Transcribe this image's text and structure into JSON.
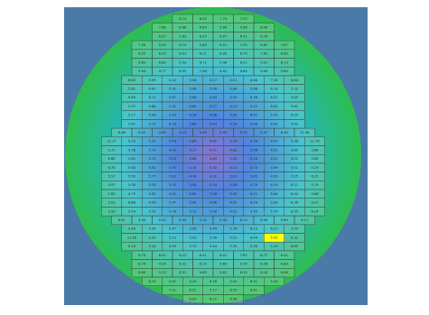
{
  "colors": {
    "panel_background": "#4a7aa8",
    "page_background": "#ffffff",
    "grid_line": "#3a4a3a",
    "highlight": "#ffff00",
    "wafer_edge_green": "#2ebd4e",
    "wafer_mid_cyan": "#22b5c5",
    "wafer_center_blue": "#2a6ad8",
    "wafer_center_violet": "#6f55c8"
  },
  "wafer_map": {
    "highlighted_cell": {
      "row": 25,
      "col": 7
    },
    "rows": [
      [
        "8.14",
        "8.52",
        "7.74",
        "7.55"
      ],
      [
        "7.88",
        "6.68",
        "6.89",
        "5.99",
        "5.86",
        "6.08"
      ],
      [
        "6.57",
        "5.63",
        "6.25",
        "6.07",
        "6.41",
        "6.76"
      ],
      [
        "7.09",
        "5.55",
        "6.19",
        "5.88",
        "6.01",
        "7.55",
        "6.65",
        "7.87"
      ],
      [
        "6.55",
        "6.35",
        "6.01",
        "6.21",
        "6.09",
        "6.70",
        "7.63",
        "6.69"
      ],
      [
        "6.62",
        "6.80",
        "5.53",
        "6.71",
        "5.48",
        "6.01",
        "5.01",
        "6.19"
      ],
      [
        "5.94",
        "4.77",
        "6.35",
        "7.96",
        "4.92",
        "4.85",
        "5.69",
        "5.64"
      ],
      [
        "6.63",
        "5.99",
        "5.52",
        "5.56",
        "5.27",
        "4.01",
        "6.66",
        "7.26",
        "6.84"
      ],
      [
        "5.81",
        "4.63",
        "5.91",
        "5.08",
        "5.06",
        "4.64",
        "5.68",
        "6.18",
        "5.32"
      ],
      [
        "6.69",
        "6.11",
        "5.87",
        "5.86",
        "5.63",
        "4.55",
        "6.38",
        "6.27",
        "5.45"
      ],
      [
        "5.37",
        "5.84",
        "5.32",
        "4.84",
        "4.27",
        "4.21",
        "5.12",
        "6.04",
        "5.81"
      ],
      [
        "5.17",
        "5.08",
        "5.33",
        "6.28",
        "4.66",
        "5.62",
        "6.01",
        "5.26",
        "6.20"
      ],
      [
        "5.67",
        "5.71",
        "6.35",
        "5.80",
        "5.43",
        "4.24",
        "5.06",
        "4.90",
        "5.63"
      ],
      [
        "6.46",
        "6.02",
        "4.65",
        "4.13",
        "5.45",
        "5.53",
        "5.71",
        "4.47",
        "6.49",
        "12.46"
      ],
      [
        "12.17",
        "5.33",
        "5.29",
        "5.43",
        "4.89",
        "4.61",
        "5.76",
        "4.78",
        "4.47",
        "5.38",
        "11.74"
      ],
      [
        "5.72",
        "5.78",
        "5.73",
        "4.90",
        "5.17",
        "4.71",
        "4.62",
        "5.56",
        "4.51",
        "4.65",
        "5.86"
      ],
      [
        "6.68",
        "5.61",
        "5.73",
        "5.03",
        "4.66",
        "4.69",
        "5.05",
        "5.16",
        "4.91",
        "5.01",
        "5.62"
      ],
      [
        "6.78",
        "5.64",
        "5.52",
        "5.74",
        "4.74",
        "4.32",
        "5.11",
        "4.73",
        "4.99",
        "5.51",
        "5.29"
      ],
      [
        "5.57",
        "5.50",
        "5.77",
        "5.42",
        "4.74",
        "4.32",
        "5.01",
        "5.45",
        "4.09",
        "5.25",
        "6.25"
      ],
      [
        "4.97",
        "5.08",
        "5.55",
        "5.52",
        "5.04",
        "5.54",
        "5.59",
        "5.79",
        "4.19",
        "6.11",
        "5.79"
      ],
      [
        "5.64",
        "4.79",
        "5.05",
        "4.51",
        "5.69",
        "5.28",
        "5.24",
        "6.21",
        "5.44",
        "6.44",
        "5.66"
      ],
      [
        "5.53",
        "6.88",
        "4.93",
        "5.97",
        "5.04",
        "4.68",
        "4.55",
        "6.54",
        "5.89",
        "6.36",
        "6.07"
      ],
      [
        "5.59",
        "5.54",
        "5.55",
        "5.76",
        "5.72",
        "5.58",
        "4.51",
        "5.45",
        "5.75",
        "6.55",
        "6.24"
      ],
      [
        "6.61",
        "4.35",
        "5.50",
        "4.94",
        "5.12",
        "5.44",
        "6.15",
        "4.95",
        "5.69",
        "6.17"
      ],
      [
        "5.46",
        "5.34",
        "5.47",
        "5.06",
        "5.44",
        "5.78",
        "6.13",
        "6.27",
        "5.55"
      ],
      [
        "11.58",
        "5.50",
        "5.53",
        "5.03",
        "5.56",
        "5.51",
        "6.44",
        "5.52",
        "6.31"
      ],
      [
        "5.19",
        "5.16",
        "5.59",
        "5.70",
        "5.44",
        "5.35",
        "5.38",
        "5.14",
        "6.89"
      ],
      [
        "6.73",
        "6.01",
        "6.22",
        "6.31",
        "6.01",
        "7.82",
        "6.77",
        "6.31"
      ],
      [
        "6.74",
        "4.54",
        "6.22",
        "6.19",
        "4.69",
        "5.55",
        "6.08",
        "6.89"
      ],
      [
        "6.69",
        "5.25",
        "6.31",
        "4.65",
        "5.61",
        "6.25",
        "6.16",
        "6.08"
      ],
      [
        "6.19",
        "5.62",
        "4.24",
        "6.78",
        "5.52",
        "6.51",
        "5.59"
      ],
      [
        "7.11",
        "6.51",
        "7.17",
        "6.55",
        "6.61"
      ],
      [
        "6.09",
        "6.21",
        "6.46"
      ]
    ]
  }
}
